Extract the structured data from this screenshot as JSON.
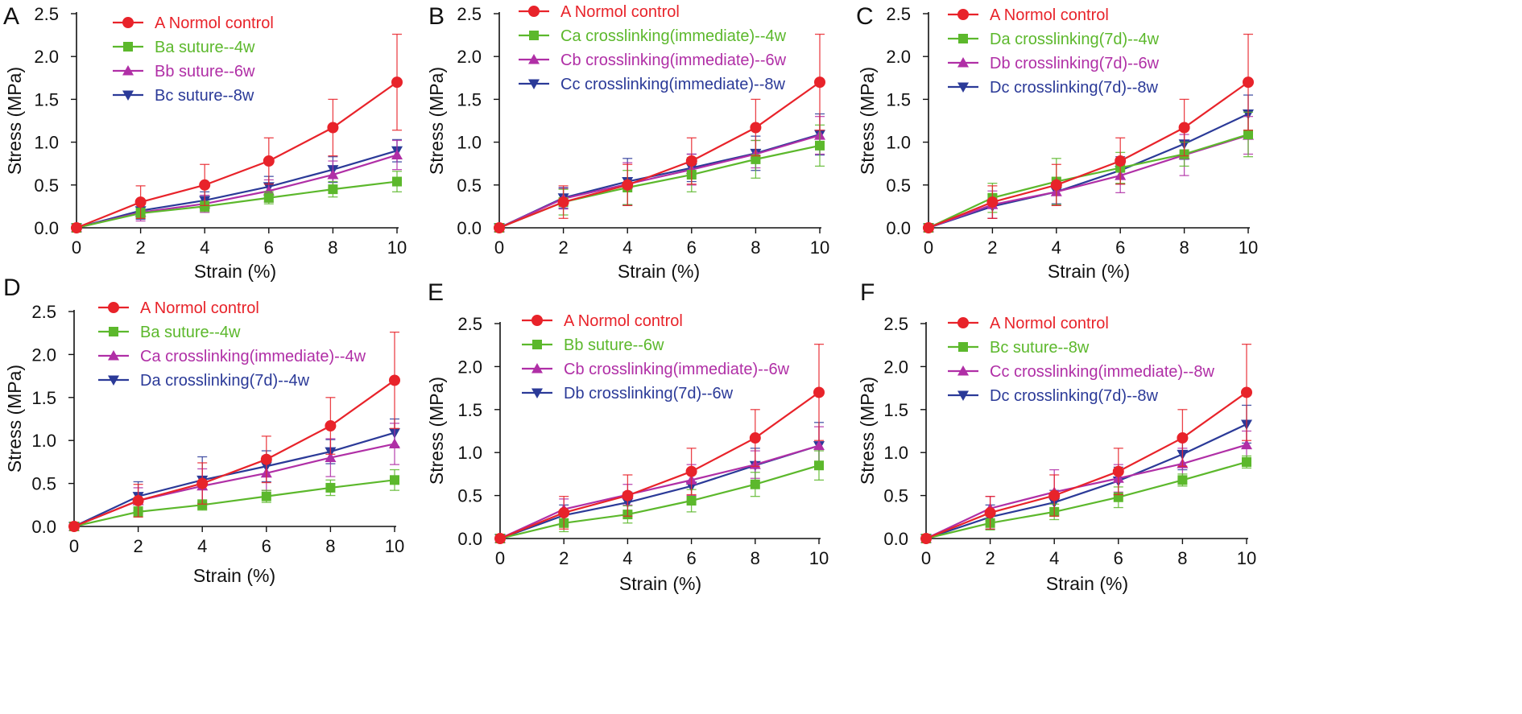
{
  "figure": {
    "colors": {
      "A": "#e8232a",
      "Ba": "#5cb82c",
      "Bb": "#b02fa6",
      "Bc": "#2b3a98",
      "Ca": "#5cb82c",
      "Cb": "#b02fa6",
      "Cc": "#2b3a98",
      "Da": "#5cb82c",
      "Db": "#b02fa6",
      "Dc": "#2b3a98"
    }
  },
  "chart_data": [
    {
      "type": "line",
      "panel_label": "A",
      "xlabel": "Strain (%)",
      "ylabel": "Stress (MPa)",
      "xlim": [
        0,
        10
      ],
      "ylim": [
        0,
        2.5
      ],
      "xticks": [
        "0",
        "2",
        "4",
        "6",
        "8",
        "10"
      ],
      "yticks": [
        "0.0",
        "0.5",
        "1.0",
        "1.5",
        "2.0",
        "2.5"
      ],
      "legend_position": "top-left",
      "x": [
        0,
        2,
        4,
        6,
        8,
        10
      ],
      "series": [
        {
          "name": "A Normol control",
          "marker": "circle",
          "color": "#e8232a",
          "values": [
            0,
            0.3,
            0.5,
            0.78,
            1.17,
            1.7
          ],
          "errors": [
            0,
            0.19,
            0.24,
            0.27,
            0.33,
            0.56
          ]
        },
        {
          "name": "Ba suture--4w",
          "marker": "square",
          "color": "#5cb82c",
          "values": [
            0,
            0.17,
            0.25,
            0.35,
            0.45,
            0.54
          ],
          "errors": [
            0,
            0.06,
            0.06,
            0.07,
            0.09,
            0.12
          ]
        },
        {
          "name": "Bb suture--6w",
          "marker": "triangle-up",
          "color": "#b02fa6",
          "values": [
            0,
            0.18,
            0.28,
            0.43,
            0.62,
            0.85
          ],
          "errors": [
            0,
            0.1,
            0.1,
            0.13,
            0.16,
            0.17
          ]
        },
        {
          "name": "Bc suture--8w",
          "marker": "triangle-down",
          "color": "#2b3a98",
          "values": [
            0,
            0.2,
            0.32,
            0.48,
            0.68,
            0.9
          ],
          "errors": [
            0,
            0.1,
            0.1,
            0.12,
            0.15,
            0.13
          ]
        }
      ]
    },
    {
      "type": "line",
      "panel_label": "B",
      "xlabel": "Strain (%)",
      "ylabel": "Stress (MPa)",
      "xlim": [
        0,
        10
      ],
      "ylim": [
        0,
        2.5
      ],
      "xticks": [
        "0",
        "2",
        "4",
        "6",
        "8",
        "10"
      ],
      "yticks": [
        "0.0",
        "0.5",
        "1.0",
        "1.5",
        "2.0",
        "2.5"
      ],
      "legend_position": "top-left",
      "x": [
        0,
        2,
        4,
        6,
        8,
        10
      ],
      "series": [
        {
          "name": "A Normol control",
          "marker": "circle",
          "color": "#e8232a",
          "values": [
            0,
            0.3,
            0.5,
            0.78,
            1.17,
            1.7
          ],
          "errors": [
            0,
            0.19,
            0.24,
            0.27,
            0.33,
            0.56
          ]
        },
        {
          "name": "Ca crosslinking(immediate)--4w",
          "marker": "square",
          "color": "#5cb82c",
          "values": [
            0,
            0.3,
            0.47,
            0.62,
            0.8,
            0.96
          ],
          "errors": [
            0,
            0.15,
            0.2,
            0.2,
            0.22,
            0.24
          ]
        },
        {
          "name": "Cb crosslinking(immediate)--6w",
          "marker": "triangle-up",
          "color": "#b02fa6",
          "values": [
            0,
            0.34,
            0.51,
            0.68,
            0.86,
            1.08
          ],
          "errors": [
            0,
            0.12,
            0.25,
            0.18,
            0.16,
            0.22
          ]
        },
        {
          "name": "Cc crosslinking(immediate)--8w",
          "marker": "triangle-down",
          "color": "#2b3a98",
          "values": [
            0,
            0.35,
            0.54,
            0.7,
            0.87,
            1.09
          ],
          "errors": [
            0,
            0.12,
            0.27,
            0.16,
            0.2,
            0.24
          ]
        }
      ]
    },
    {
      "type": "line",
      "panel_label": "C",
      "xlabel": "Strain (%)",
      "ylabel": "Stress (MPa)",
      "xlim": [
        0,
        10
      ],
      "ylim": [
        0,
        2.5
      ],
      "xticks": [
        "0",
        "2",
        "4",
        "6",
        "8",
        "10"
      ],
      "yticks": [
        "0.0",
        "0.5",
        "1.0",
        "1.5",
        "2.0",
        "2.5"
      ],
      "legend_position": "top-left",
      "x": [
        0,
        2,
        4,
        6,
        8,
        10
      ],
      "series": [
        {
          "name": "A Normol control",
          "marker": "circle",
          "color": "#e8232a",
          "values": [
            0,
            0.3,
            0.5,
            0.78,
            1.17,
            1.7
          ],
          "errors": [
            0,
            0.19,
            0.24,
            0.27,
            0.33,
            0.56
          ]
        },
        {
          "name": "Da crosslinking(7d)--4w",
          "marker": "square",
          "color": "#5cb82c",
          "values": [
            0,
            0.35,
            0.54,
            0.7,
            0.86,
            1.09
          ],
          "errors": [
            0,
            0.17,
            0.27,
            0.18,
            0.14,
            0.26
          ]
        },
        {
          "name": "Db crosslinking(7d)--6w",
          "marker": "triangle-up",
          "color": "#b02fa6",
          "values": [
            0,
            0.27,
            0.42,
            0.61,
            0.85,
            1.08
          ],
          "errors": [
            0,
            0.16,
            0.16,
            0.2,
            0.24,
            0.22
          ]
        },
        {
          "name": "Dc crosslinking(7d)--8w",
          "marker": "triangle-down",
          "color": "#2b3a98",
          "values": [
            0,
            0.25,
            0.42,
            0.67,
            0.98,
            1.33
          ],
          "errors": [
            0,
            0.14,
            0.14,
            0.16,
            0.18,
            0.22
          ]
        }
      ]
    },
    {
      "type": "line",
      "panel_label": "D",
      "xlabel": "Strain (%)",
      "ylabel": "Stress (MPa)",
      "xlim": [
        0,
        10
      ],
      "ylim": [
        0,
        2.5
      ],
      "xticks": [
        "0",
        "2",
        "4",
        "6",
        "8",
        "10"
      ],
      "yticks": [
        "0.0",
        "0.5",
        "1.0",
        "1.5",
        "2.0",
        "2.5"
      ],
      "legend_position": "top-left",
      "x": [
        0,
        2,
        4,
        6,
        8,
        10
      ],
      "series": [
        {
          "name": "A Normol control",
          "marker": "circle",
          "color": "#e8232a",
          "values": [
            0,
            0.3,
            0.5,
            0.78,
            1.17,
            1.7
          ],
          "errors": [
            0,
            0.19,
            0.24,
            0.27,
            0.33,
            0.56
          ]
        },
        {
          "name": "Ba suture--4w",
          "marker": "square",
          "color": "#5cb82c",
          "values": [
            0,
            0.17,
            0.25,
            0.35,
            0.45,
            0.54
          ],
          "errors": [
            0,
            0.06,
            0.06,
            0.07,
            0.09,
            0.12
          ]
        },
        {
          "name": "Ca crosslinking(immediate)--4w",
          "marker": "triangle-up",
          "color": "#b02fa6",
          "values": [
            0,
            0.3,
            0.47,
            0.62,
            0.8,
            0.96
          ],
          "errors": [
            0,
            0.15,
            0.2,
            0.2,
            0.22,
            0.24
          ]
        },
        {
          "name": "Da crosslinking(7d)--4w",
          "marker": "triangle-down",
          "color": "#2b3a98",
          "values": [
            0,
            0.35,
            0.54,
            0.7,
            0.87,
            1.09
          ],
          "errors": [
            0,
            0.17,
            0.27,
            0.18,
            0.14,
            0.16
          ]
        }
      ]
    },
    {
      "type": "line",
      "panel_label": "E",
      "xlabel": "Strain (%)",
      "ylabel": "Stress (MPa)",
      "xlim": [
        0,
        10
      ],
      "ylim": [
        0,
        2.5
      ],
      "xticks": [
        "0",
        "2",
        "4",
        "6",
        "8",
        "10"
      ],
      "yticks": [
        "0.0",
        "0.5",
        "1.0",
        "1.5",
        "2.0",
        "2.5"
      ],
      "legend_position": "top-left",
      "x": [
        0,
        2,
        4,
        6,
        8,
        10
      ],
      "series": [
        {
          "name": "A Normol control",
          "marker": "circle",
          "color": "#e8232a",
          "values": [
            0,
            0.3,
            0.5,
            0.78,
            1.17,
            1.7
          ],
          "errors": [
            0,
            0.19,
            0.24,
            0.27,
            0.33,
            0.56
          ]
        },
        {
          "name": "Bb suture--6w",
          "marker": "square",
          "color": "#5cb82c",
          "values": [
            0,
            0.18,
            0.28,
            0.44,
            0.63,
            0.85
          ],
          "errors": [
            0,
            0.1,
            0.1,
            0.13,
            0.14,
            0.17
          ]
        },
        {
          "name": "Cb crosslinking(immediate)--6w",
          "marker": "triangle-up",
          "color": "#b02fa6",
          "values": [
            0,
            0.34,
            0.51,
            0.68,
            0.86,
            1.08
          ],
          "errors": [
            0,
            0.12,
            0.12,
            0.18,
            0.16,
            0.22
          ]
        },
        {
          "name": "Db crosslinking(7d)--6w",
          "marker": "triangle-down",
          "color": "#2b3a98",
          "values": [
            0,
            0.27,
            0.42,
            0.61,
            0.85,
            1.08
          ],
          "errors": [
            0,
            0.12,
            0.12,
            0.16,
            0.2,
            0.27
          ]
        }
      ]
    },
    {
      "type": "line",
      "panel_label": "F",
      "xlabel": "Strain (%)",
      "ylabel": "Stress (MPa)",
      "xlim": [
        0,
        10
      ],
      "ylim": [
        0,
        2.5
      ],
      "xticks": [
        "0",
        "2",
        "4",
        "6",
        "8",
        "10"
      ],
      "yticks": [
        "0.0",
        "0.5",
        "1.0",
        "1.5",
        "2.0",
        "2.5"
      ],
      "legend_position": "top-left",
      "x": [
        0,
        2,
        4,
        6,
        8,
        10
      ],
      "series": [
        {
          "name": "A Normol control",
          "marker": "circle",
          "color": "#e8232a",
          "values": [
            0,
            0.3,
            0.5,
            0.78,
            1.17,
            1.7
          ],
          "errors": [
            0,
            0.19,
            0.24,
            0.27,
            0.33,
            0.56
          ]
        },
        {
          "name": "Bc suture--8w",
          "marker": "square",
          "color": "#5cb82c",
          "values": [
            0,
            0.18,
            0.31,
            0.48,
            0.68,
            0.89
          ],
          "errors": [
            0,
            0.08,
            0.09,
            0.12,
            0.07,
            0.07
          ]
        },
        {
          "name": "Cc crosslinking(immediate)--8w",
          "marker": "triangle-up",
          "color": "#b02fa6",
          "values": [
            0,
            0.35,
            0.54,
            0.7,
            0.87,
            1.09
          ],
          "errors": [
            0,
            0.14,
            0.26,
            0.16,
            0.18,
            0.16
          ]
        },
        {
          "name": "Dc crosslinking(7d)--8w",
          "marker": "triangle-down",
          "color": "#2b3a98",
          "values": [
            0,
            0.25,
            0.42,
            0.67,
            0.98,
            1.33
          ],
          "errors": [
            0,
            0.14,
            0.14,
            0.16,
            0.18,
            0.22
          ]
        }
      ]
    }
  ]
}
